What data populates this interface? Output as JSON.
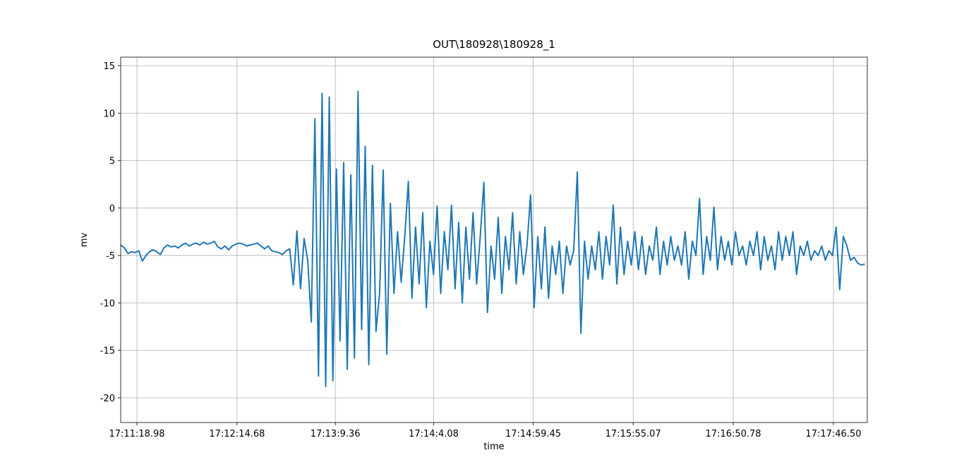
{
  "chart_data": {
    "type": "line",
    "title": "OUT\\180928\\180928_1",
    "xlabel": "time",
    "ylabel": "mv",
    "color": "#1f77b4",
    "grid": true,
    "xlim": [
      61869.94,
      62285.36
    ],
    "ylim": [
      -22.6,
      15.9
    ],
    "xticks": [
      {
        "value": 61878.98,
        "label": "17:11:18.98"
      },
      {
        "value": 61934.68,
        "label": "17:12:14.68"
      },
      {
        "value": 61989.36,
        "label": "17:13:9.36"
      },
      {
        "value": 62044.08,
        "label": "17:14:4.08"
      },
      {
        "value": 62099.45,
        "label": "17:14:59.45"
      },
      {
        "value": 62155.07,
        "label": "17:15:55.07"
      },
      {
        "value": 62210.78,
        "label": "17:16:50.78"
      },
      {
        "value": 62266.5,
        "label": "17:17:46.50"
      }
    ],
    "yticks": [
      -20,
      -15,
      -10,
      -5,
      0,
      5,
      10,
      15
    ],
    "x": [
      61870,
      61872,
      61874,
      61876,
      61878,
      61880,
      61882,
      61884,
      61886,
      61888,
      61890,
      61892,
      61894,
      61896,
      61898,
      61900,
      61902,
      61904,
      61906,
      61908,
      61910,
      61912,
      61914,
      61916,
      61918,
      61920,
      61922,
      61924,
      61926,
      61928,
      61930,
      61932,
      61934,
      61936,
      61938,
      61940,
      61942,
      61944,
      61946,
      61948,
      61950,
      61952,
      61954,
      61956,
      61958,
      61960,
      61962,
      61964,
      61966,
      61968,
      61970,
      61972,
      61974,
      61976,
      61978,
      61980,
      61982,
      61984,
      61986,
      61988,
      61990,
      61992,
      61994,
      61996,
      61998,
      62000,
      62002,
      62004,
      62006,
      62008,
      62010,
      62012,
      62014,
      62016,
      62018,
      62020,
      62022,
      62024,
      62026,
      62028,
      62030,
      62032,
      62034,
      62036,
      62038,
      62040,
      62042,
      62044,
      62046,
      62048,
      62050,
      62052,
      62054,
      62056,
      62058,
      62060,
      62062,
      62064,
      62066,
      62068,
      62070,
      62072,
      62074,
      62076,
      62078,
      62080,
      62082,
      62084,
      62086,
      62088,
      62090,
      62092,
      62094,
      62096,
      62098,
      62100,
      62102,
      62104,
      62106,
      62108,
      62110,
      62112,
      62114,
      62116,
      62118,
      62120,
      62122,
      62124,
      62126,
      62128,
      62130,
      62132,
      62134,
      62136,
      62138,
      62140,
      62142,
      62144,
      62146,
      62148,
      62150,
      62152,
      62154,
      62156,
      62158,
      62160,
      62162,
      62164,
      62166,
      62168,
      62170,
      62172,
      62174,
      62176,
      62178,
      62180,
      62182,
      62184,
      62186,
      62188,
      62190,
      62192,
      62194,
      62196,
      62198,
      62200,
      62202,
      62204,
      62206,
      62208,
      62210,
      62212,
      62214,
      62216,
      62218,
      62220,
      62222,
      62224,
      62226,
      62228,
      62230,
      62232,
      62234,
      62236,
      62238,
      62240,
      62242,
      62244,
      62246,
      62248,
      62250,
      62252,
      62254,
      62256,
      62258,
      62260,
      62262,
      62264,
      62266,
      62268,
      62270,
      62272,
      62274,
      62276,
      62278,
      62280,
      62282,
      62284
    ],
    "values": [
      -3.9,
      -4.2,
      -4.8,
      -4.6,
      -4.7,
      -4.5,
      -5.6,
      -5.0,
      -4.6,
      -4.4,
      -4.6,
      -4.9,
      -4.2,
      -3.9,
      -4.1,
      -4.0,
      -4.2,
      -3.9,
      -3.7,
      -4.0,
      -3.8,
      -3.7,
      -3.9,
      -3.6,
      -3.8,
      -3.7,
      -3.5,
      -4.1,
      -4.3,
      -4.0,
      -4.4,
      -4.0,
      -3.8,
      -3.7,
      -3.8,
      -4.0,
      -3.9,
      -3.8,
      -3.7,
      -4.0,
      -4.3,
      -4.0,
      -4.5,
      -4.6,
      -4.7,
      -4.9,
      -4.5,
      -4.3,
      -8.1,
      -2.4,
      -8.5,
      -3.2,
      -5.5,
      -12.0,
      9.4,
      -17.7,
      12.1,
      -18.8,
      11.7,
      -18.2,
      4.1,
      -14.0,
      4.8,
      -17.0,
      3.5,
      -15.8,
      12.3,
      -12.8,
      6.5,
      -16.5,
      4.5,
      -13.0,
      -9.0,
      4.0,
      -15.4,
      0.5,
      -9.0,
      -2.5,
      -7.8,
      -3.0,
      2.8,
      -9.5,
      -2.0,
      -8.0,
      -0.5,
      -10.5,
      -3.5,
      -7.0,
      0.2,
      -9.0,
      -2.5,
      -6.5,
      0.3,
      -8.5,
      -1.5,
      -10.0,
      -2.0,
      -7.5,
      -0.5,
      -8.0,
      -3.0,
      2.7,
      -11.0,
      -4.0,
      -7.5,
      -1.0,
      -9.0,
      -3.0,
      -6.5,
      -0.5,
      -8.0,
      -2.5,
      -7.0,
      -4.0,
      1.4,
      -10.5,
      -3.0,
      -8.5,
      -2.0,
      -9.5,
      -4.0,
      -7.0,
      -3.5,
      -9.0,
      -4.0,
      -6.0,
      -4.5,
      3.8,
      -13.2,
      -3.5,
      -7.5,
      -4.0,
      -6.5,
      -2.5,
      -7.5,
      -3.0,
      -6.0,
      0.3,
      -8.0,
      -2.0,
      -7.0,
      -3.5,
      -6.0,
      -2.5,
      -6.5,
      -3.0,
      -7.0,
      -4.0,
      -5.5,
      -2.0,
      -7.0,
      -3.5,
      -6.0,
      -3.0,
      -5.5,
      -4.0,
      -6.0,
      -2.5,
      -7.5,
      -3.5,
      -5.0,
      1.0,
      -7.0,
      -3.0,
      -5.5,
      0.1,
      -6.5,
      -3.0,
      -5.5,
      -3.5,
      -6.0,
      -2.5,
      -5.0,
      -4.0,
      -6.0,
      -3.5,
      -5.0,
      -2.5,
      -6.5,
      -3.0,
      -5.5,
      -4.0,
      -6.5,
      -2.5,
      -5.5,
      -3.0,
      -5.0,
      -2.5,
      -7.0,
      -4.0,
      -5.0,
      -3.5,
      -5.5,
      -4.5,
      -5.0,
      -4.0,
      -5.5,
      -4.5,
      -5.0,
      -2.0,
      -8.6,
      -3.0,
      -4.0,
      -5.5,
      -5.2,
      -5.8,
      -6.0,
      -5.9
    ]
  }
}
